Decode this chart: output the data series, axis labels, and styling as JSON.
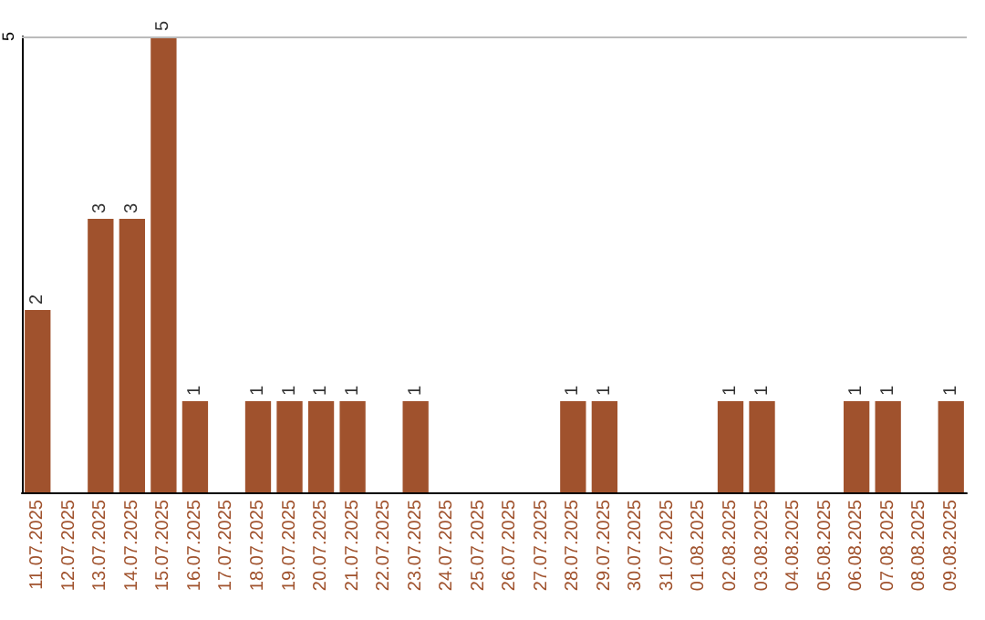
{
  "chart_data": {
    "type": "bar",
    "categories": [
      "11.07.2025",
      "12.07.2025",
      "13.07.2025",
      "14.07.2025",
      "15.07.2025",
      "16.07.2025",
      "17.07.2025",
      "18.07.2025",
      "19.07.2025",
      "20.07.2025",
      "21.07.2025",
      "22.07.2025",
      "23.07.2025",
      "24.07.2025",
      "25.07.2025",
      "26.07.2025",
      "27.07.2025",
      "28.07.2025",
      "29.07.2025",
      "30.07.2025",
      "31.07.2025",
      "01.08.2025",
      "02.08.2025",
      "03.08.2025",
      "04.08.2025",
      "05.08.2025",
      "06.08.2025",
      "07.08.2025",
      "08.08.2025",
      "09.08.2025"
    ],
    "values": [
      2,
      0,
      3,
      3,
      5,
      1,
      0,
      1,
      1,
      1,
      1,
      0,
      1,
      0,
      0,
      0,
      0,
      1,
      1,
      0,
      0,
      0,
      1,
      1,
      0,
      0,
      1,
      1,
      0,
      1
    ],
    "value_labels": [
      "2",
      null,
      "3",
      "3",
      "5",
      "1",
      null,
      "1",
      "1",
      "1",
      "1",
      null,
      "1",
      null,
      null,
      null,
      null,
      "1",
      "1",
      null,
      null,
      null,
      "1",
      "1",
      null,
      null,
      "1",
      "1",
      null,
      "1"
    ],
    "color": "#a0522d",
    "ylim": [
      0,
      5
    ],
    "yticks": [
      5
    ],
    "ref_lines": [
      {
        "axis": "y",
        "value": 5,
        "color": "#bbbbbb"
      }
    ]
  }
}
